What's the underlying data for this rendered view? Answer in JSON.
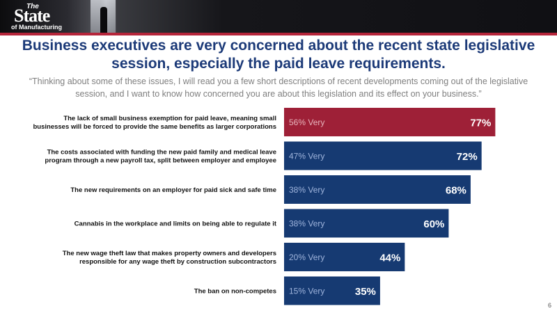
{
  "branding": {
    "logo_the": "The",
    "logo_state": "State",
    "logo_sub": "of Manufacturing"
  },
  "title": "Business executives are very concerned about the recent state legislative session, especially the paid leave requirements.",
  "subtitle": "“Thinking about some of these issues, I will read you a few short descriptions of recent developments coming out of the legislative session, and I want to know how concerned you are about this legislation and its effect on your business.”",
  "page_number": "6",
  "colors": {
    "title": "#1c3a78",
    "bar_default": "#163a72",
    "bar_highlight": "#9e2037",
    "inner_label_default": "#9fb4dc",
    "inner_label_highlight": "#e8b5bd"
  },
  "chart_data": {
    "type": "bar",
    "orientation": "horizontal",
    "xlim": [
      0,
      100
    ],
    "categories": [
      [
        "The lack of small business exemption for paid leave, meaning small",
        "businesses will be forced to provide the same benefits as larger corporations"
      ],
      [
        "The costs associated with funding the new paid family and medical leave",
        "program through a new payroll tax, split between employer and employee"
      ],
      [
        "The new requirements on an employer for paid sick and safe time"
      ],
      [
        "Cannabis in the workplace and limits on being able to regulate it"
      ],
      [
        "The new wage theft law that makes property owners and developers",
        "responsible for any wage theft by construction subcontractors"
      ],
      [
        "The ban on non-competes"
      ]
    ],
    "series": [
      {
        "values": [
          77,
          72,
          68,
          60,
          44,
          35
        ]
      },
      {
        "values": [
          56,
          47,
          38,
          38,
          20,
          15
        ]
      }
    ],
    "value_labels": [
      "77%",
      "72%",
      "68%",
      "60%",
      "44%",
      "35%"
    ],
    "inner_labels": [
      "56% Very",
      "47% Very",
      "38% Very",
      "38% Very",
      "20% Very",
      "15% Very"
    ],
    "highlight_index": 0
  }
}
